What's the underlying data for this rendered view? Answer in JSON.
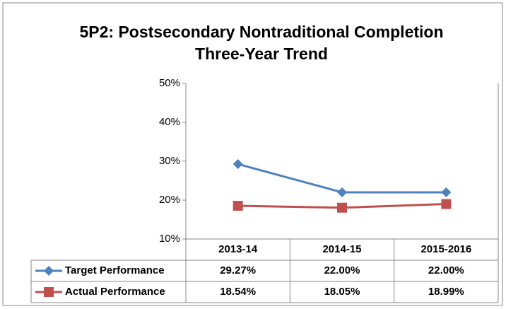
{
  "chart_data": {
    "type": "line",
    "title": "5P2: Postsecondary Nontraditional Completion",
    "subtitle": "Three-Year Trend",
    "categories": [
      "2013-14",
      "2014-15",
      "2015-2016"
    ],
    "series": [
      {
        "name": "Target Performance",
        "color": "#4f81bd",
        "marker": "diamond",
        "values": [
          29.27,
          22.0,
          22.0
        ],
        "value_labels": [
          "29.27%",
          "22.00%",
          "22.00%"
        ]
      },
      {
        "name": "Actual Performance",
        "color": "#c0504d",
        "marker": "square",
        "values": [
          18.54,
          18.05,
          18.99
        ],
        "value_labels": [
          "18.54%",
          "18.05%",
          "18.99%"
        ]
      }
    ],
    "ylim": [
      10,
      50
    ],
    "yticks": [
      {
        "value": 10,
        "label": "10%"
      },
      {
        "value": 20,
        "label": "20%"
      },
      {
        "value": 30,
        "label": "30%"
      },
      {
        "value": 40,
        "label": "40%"
      },
      {
        "value": 50,
        "label": "50%"
      }
    ],
    "grid": false
  }
}
